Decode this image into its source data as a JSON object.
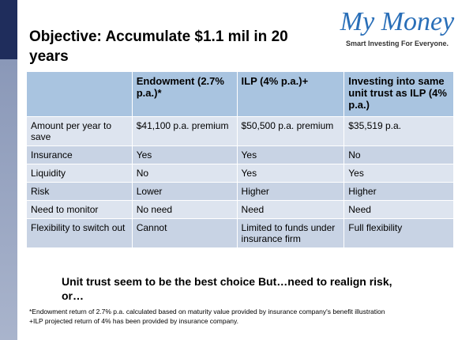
{
  "header": {
    "title": "Objective: Accumulate $1.1 mil in 20 years"
  },
  "logo": {
    "name": "My Money",
    "tagline": "Smart Investing For Everyone."
  },
  "table": {
    "columns": [
      "Endowment (2.7% p.a.)*",
      "ILP (4% p.a.)+",
      "Investing into same unit trust as ILP (4% p.a.)"
    ],
    "rows": [
      [
        "Amount per year to save",
        "$41,100 p.a. premium",
        "$50,500 p.a. premium",
        "$35,519 p.a."
      ],
      [
        "Insurance",
        "Yes",
        "Yes",
        "No"
      ],
      [
        "Liquidity",
        "No",
        "Yes",
        "Yes"
      ],
      [
        "Risk",
        "Lower",
        "Higher",
        "Higher"
      ],
      [
        "Need to monitor",
        "No need",
        "Need",
        "Need"
      ],
      [
        "Flexibility to switch out",
        "Cannot",
        "Limited to funds under insurance firm",
        "Full flexibility"
      ]
    ]
  },
  "conclusion": "Unit trust seem to be the best choice But…need to realign risk, or…",
  "footnotes": [
    "*Endowment return of 2.7% p.a. calculated based on maturity value provided by insurance company's benefit illustration",
    "+ILP projected return of 4% has been provided by insurance company."
  ]
}
